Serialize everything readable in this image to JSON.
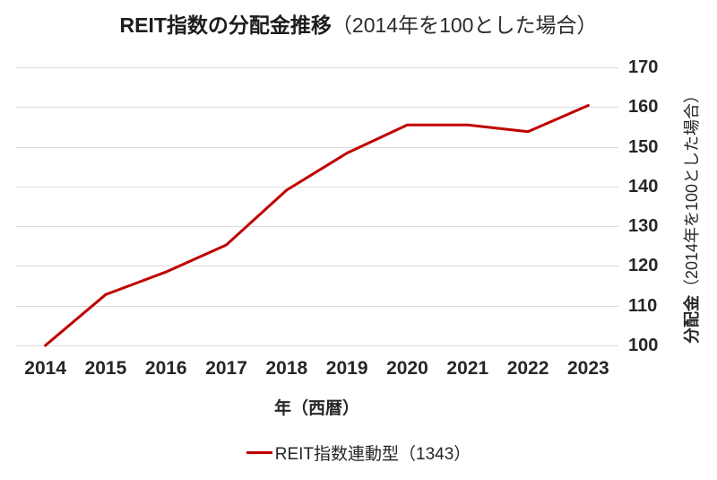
{
  "title": {
    "main": "REIT指数の分配金推移",
    "sub": "（2014年を100とした場合）"
  },
  "chart_data": {
    "type": "line",
    "categories": [
      "2014",
      "2015",
      "2016",
      "2017",
      "2018",
      "2019",
      "2020",
      "2021",
      "2022",
      "2023"
    ],
    "series": [
      {
        "name": "REIT指数連動型（1343）",
        "color": "#C00000",
        "values": [
          100.0,
          112.8,
          118.5,
          125.3,
          139.1,
          148.4,
          155.5,
          155.5,
          153.8,
          160.4
        ]
      }
    ],
    "xlabel": "年（西暦）",
    "ylabel_bold": "分配金",
    "ylabel_sub": "（2014年を100とした場合）",
    "ylim": [
      100,
      170
    ],
    "yticks": [
      170,
      160,
      150,
      140,
      130,
      120,
      110,
      100
    ],
    "ytick_step": 10,
    "grid": "horizontal",
    "legend_position": "bottom",
    "colors": {
      "line": "#C00000",
      "gridline": "#DCDCDC",
      "text": "#262626",
      "background": "#FFFFFF"
    }
  }
}
